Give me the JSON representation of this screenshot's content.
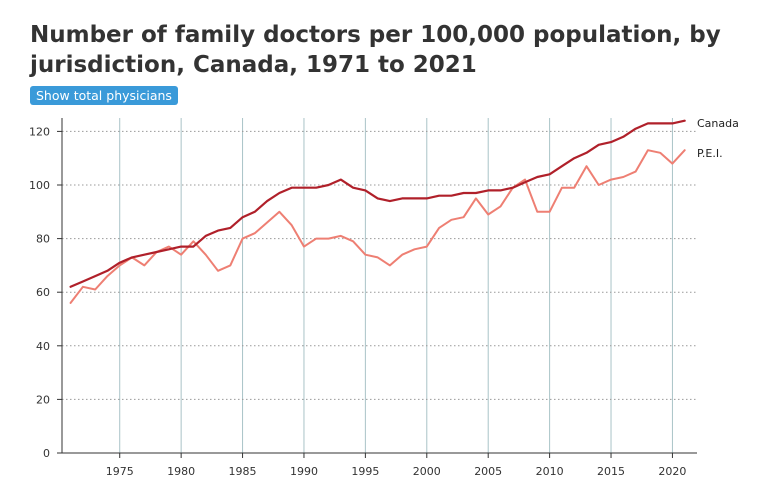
{
  "title": "Number of family doctors per 100,000 population, by jurisdiction, Canada, 1971 to 2021",
  "toggle_button": "Show total physicians",
  "colors": {
    "canada": "#b0202a",
    "pei": "#ee7f73",
    "year_grid": "#a9c3c7",
    "value_grid": "#999999",
    "axis": "#333333",
    "button": "#3a9ad9"
  },
  "chart_data": {
    "type": "line",
    "title": "Number of family doctors per 100,000 population, by jurisdiction, Canada, 1971 to 2021",
    "xlabel": "",
    "ylabel": "",
    "xlim": [
      1970.3,
      2022
    ],
    "ylim": [
      0,
      120
    ],
    "x_ticks": [
      1975,
      1980,
      1985,
      1990,
      1995,
      2000,
      2005,
      2010,
      2015,
      2020
    ],
    "y_ticks": [
      0,
      20,
      40,
      60,
      80,
      100,
      120
    ],
    "grid": {
      "x": "solid",
      "y": "dotted"
    },
    "legend": "end-of-line labels",
    "x": [
      1971,
      1972,
      1973,
      1974,
      1975,
      1976,
      1977,
      1978,
      1979,
      1980,
      1981,
      1982,
      1983,
      1984,
      1985,
      1986,
      1987,
      1988,
      1989,
      1990,
      1991,
      1992,
      1993,
      1994,
      1995,
      1996,
      1997,
      1998,
      1999,
      2000,
      2001,
      2002,
      2003,
      2004,
      2005,
      2006,
      2007,
      2008,
      2009,
      2010,
      2011,
      2012,
      2013,
      2014,
      2015,
      2016,
      2017,
      2018,
      2019,
      2020,
      2021
    ],
    "series": [
      {
        "name": "Canada",
        "values": [
          62,
          64,
          66,
          68,
          71,
          73,
          74,
          75,
          76,
          77,
          77,
          81,
          83,
          84,
          88,
          90,
          94,
          97,
          99,
          99,
          99,
          100,
          102,
          99,
          98,
          95,
          94,
          95,
          95,
          95,
          96,
          96,
          97,
          97,
          98,
          98,
          99,
          101,
          103,
          104,
          107,
          110,
          112,
          115,
          116,
          118,
          121,
          123,
          123,
          123,
          124
        ]
      },
      {
        "name": "P.E.I.",
        "values": [
          56,
          62,
          61,
          66,
          70,
          73,
          70,
          75,
          77,
          74,
          79,
          74,
          68,
          70,
          80,
          82,
          86,
          90,
          85,
          77,
          80,
          80,
          81,
          79,
          74,
          73,
          70,
          74,
          76,
          77,
          84,
          87,
          88,
          95,
          89,
          92,
          99,
          102,
          90,
          90,
          99,
          99,
          107,
          100,
          102,
          103,
          105,
          113,
          112,
          108,
          113
        ]
      }
    ]
  }
}
